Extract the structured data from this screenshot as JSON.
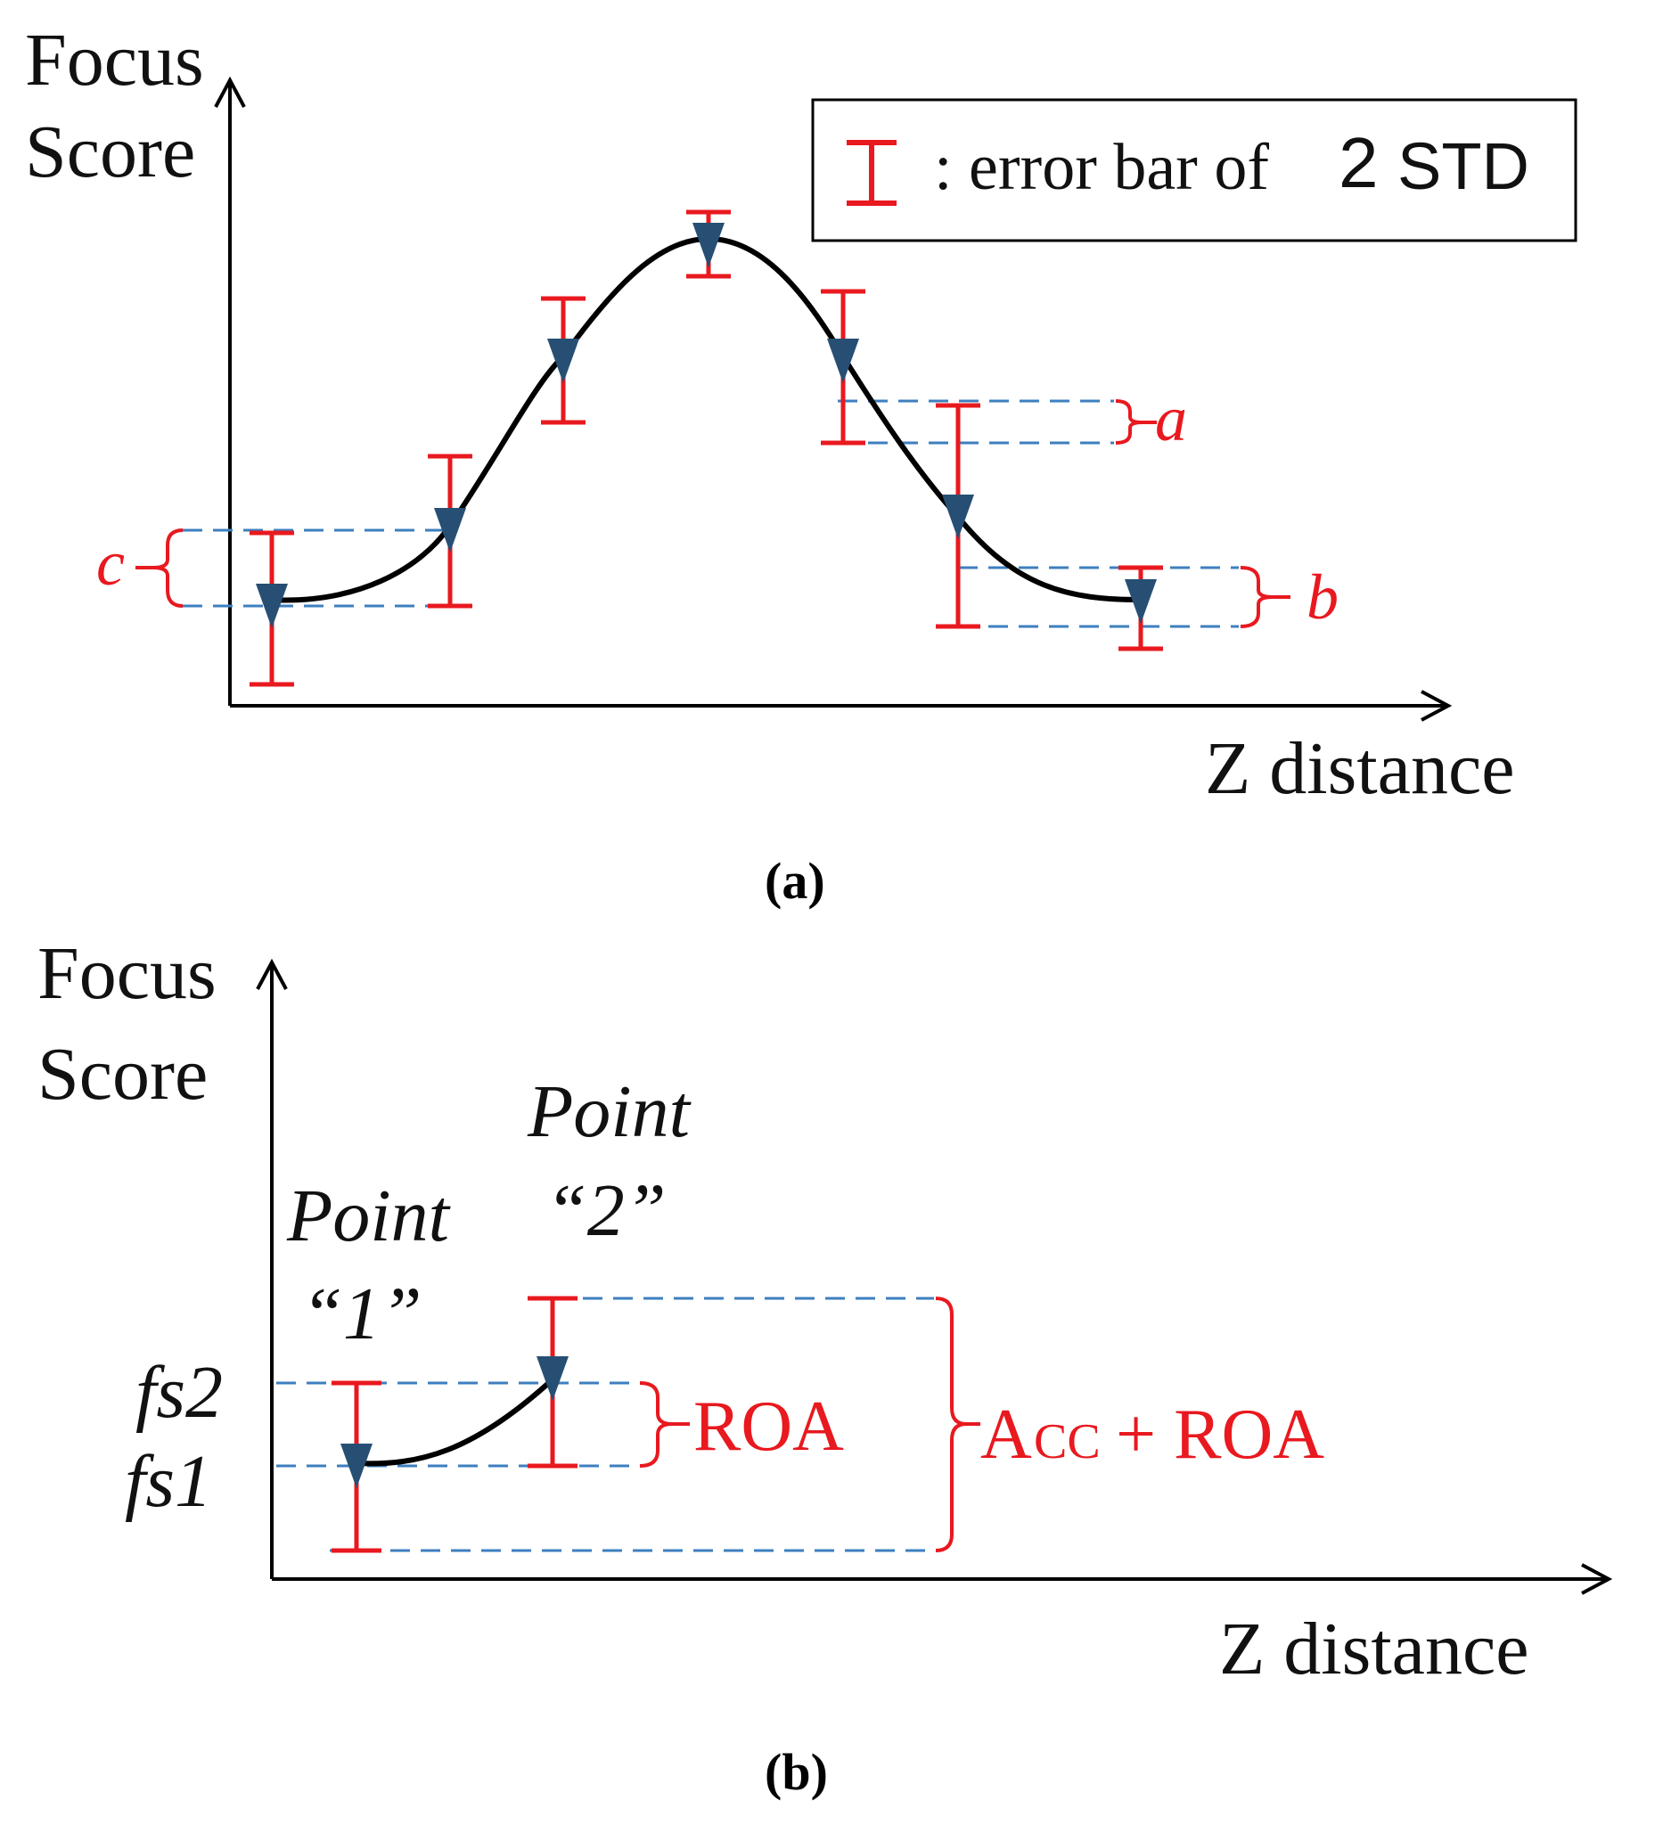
{
  "colors": {
    "curve": "#000000",
    "error_bar": "#e8191f",
    "dash": "#3d7fbf",
    "marker": "#274f73",
    "text": "#111111"
  },
  "panel_a": {
    "y_label_line1": "Focus",
    "y_label_line2": "Score",
    "x_label": "Z distance",
    "legend": {
      "colon_text": ": error bar of",
      "two": "2",
      "std": "STD",
      "icon": "error-bar-icon"
    },
    "brace_labels": {
      "a": "a",
      "b": "b",
      "c": "c"
    },
    "caption": "(a)"
  },
  "panel_b": {
    "y_label_line1": "Focus",
    "y_label_line2": "Score",
    "x_label": "Z distance",
    "point1_label_line1": "Point",
    "point1_label_line2": "“1”",
    "point2_label_line1": "Point",
    "point2_label_line2": "“2”",
    "fs2": "fs2",
    "fs1": "fs1",
    "roa": "ROA",
    "acc_a": "A",
    "acc_cc": "CC",
    "acc_plus_roa": "+ ROA",
    "caption": "(b)"
  }
}
